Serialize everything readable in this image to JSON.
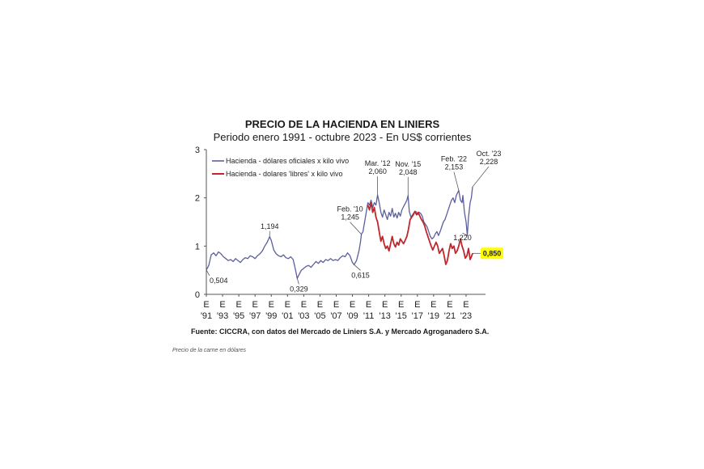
{
  "caption": "Precio de la carne en dólares",
  "chart_data": {
    "type": "line",
    "title": "PRECIO DE LA HACIENDA EN LINIERS",
    "subtitle": "Periodo enero 1991 - octubre 2023 - En US$ corrientes",
    "source": "Fuente: CICCRA, con datos del Mercado de Liniers S.A. y Mercado Agroganadero S.A.",
    "ylim": [
      0,
      3
    ],
    "yticks": [
      "0",
      "1",
      "2",
      "3"
    ],
    "xlim": [
      1991,
      2023.9
    ],
    "xticks": [
      {
        "x": 1991,
        "top": "E",
        "bottom": "'91"
      },
      {
        "x": 1993,
        "top": "E",
        "bottom": "'93"
      },
      {
        "x": 1995,
        "top": "E",
        "bottom": "'95"
      },
      {
        "x": 1997,
        "top": "E",
        "bottom": "'97"
      },
      {
        "x": 1999,
        "top": "E",
        "bottom": "'99"
      },
      {
        "x": 2001,
        "top": "E",
        "bottom": "'01"
      },
      {
        "x": 2003,
        "top": "E",
        "bottom": "'03"
      },
      {
        "x": 2005,
        "top": "E",
        "bottom": "'05"
      },
      {
        "x": 2007,
        "top": "E",
        "bottom": "'07"
      },
      {
        "x": 2009,
        "top": "E",
        "bottom": "'09"
      },
      {
        "x": 2011,
        "top": "E",
        "bottom": "'11"
      },
      {
        "x": 2013,
        "top": "E",
        "bottom": "'13"
      },
      {
        "x": 2015,
        "top": "E",
        "bottom": "'15"
      },
      {
        "x": 2017,
        "top": "E",
        "bottom": "'17"
      },
      {
        "x": 2019,
        "top": "E",
        "bottom": "'19"
      },
      {
        "x": 2021,
        "top": "E",
        "bottom": "'21"
      },
      {
        "x": 2023,
        "top": "E",
        "bottom": "'23"
      }
    ],
    "legend_position": "top-left",
    "series": [
      {
        "name": "Hacienda - dólares oficiales x kilo vivo",
        "color": "#5c5f9e",
        "points": [
          [
            1991.0,
            0.504
          ],
          [
            1991.3,
            0.6
          ],
          [
            1991.6,
            0.82
          ],
          [
            1991.9,
            0.86
          ],
          [
            1992.2,
            0.8
          ],
          [
            1992.5,
            0.88
          ],
          [
            1992.8,
            0.84
          ],
          [
            1993.1,
            0.78
          ],
          [
            1993.4,
            0.74
          ],
          [
            1993.7,
            0.7
          ],
          [
            1994.0,
            0.72
          ],
          [
            1994.3,
            0.68
          ],
          [
            1994.6,
            0.74
          ],
          [
            1994.9,
            0.7
          ],
          [
            1995.2,
            0.66
          ],
          [
            1995.5,
            0.72
          ],
          [
            1995.8,
            0.76
          ],
          [
            1996.1,
            0.74
          ],
          [
            1996.4,
            0.8
          ],
          [
            1996.7,
            0.78
          ],
          [
            1997.0,
            0.74
          ],
          [
            1997.3,
            0.8
          ],
          [
            1997.6,
            0.84
          ],
          [
            1997.9,
            0.9
          ],
          [
            1998.2,
            1.0
          ],
          [
            1998.5,
            1.08
          ],
          [
            1998.8,
            1.194
          ],
          [
            1999.0,
            1.12
          ],
          [
            1999.3,
            0.92
          ],
          [
            1999.6,
            0.84
          ],
          [
            1999.9,
            0.8
          ],
          [
            2000.2,
            0.78
          ],
          [
            2000.5,
            0.82
          ],
          [
            2000.8,
            0.76
          ],
          [
            2001.1,
            0.74
          ],
          [
            2001.4,
            0.78
          ],
          [
            2001.7,
            0.72
          ],
          [
            2002.0,
            0.5
          ],
          [
            2002.2,
            0.329
          ],
          [
            2002.4,
            0.4
          ],
          [
            2002.7,
            0.5
          ],
          [
            2003.0,
            0.54
          ],
          [
            2003.3,
            0.58
          ],
          [
            2003.6,
            0.6
          ],
          [
            2003.9,
            0.56
          ],
          [
            2004.2,
            0.62
          ],
          [
            2004.5,
            0.68
          ],
          [
            2004.8,
            0.64
          ],
          [
            2005.1,
            0.7
          ],
          [
            2005.4,
            0.66
          ],
          [
            2005.7,
            0.72
          ],
          [
            2006.0,
            0.7
          ],
          [
            2006.3,
            0.74
          ],
          [
            2006.6,
            0.7
          ],
          [
            2006.9,
            0.72
          ],
          [
            2007.2,
            0.7
          ],
          [
            2007.5,
            0.76
          ],
          [
            2007.8,
            0.8
          ],
          [
            2008.1,
            0.78
          ],
          [
            2008.4,
            0.86
          ],
          [
            2008.7,
            0.8
          ],
          [
            2009.0,
            0.66
          ],
          [
            2009.2,
            0.615
          ],
          [
            2009.5,
            0.7
          ],
          [
            2009.8,
            0.9
          ],
          [
            2010.0,
            1.1
          ],
          [
            2010.1,
            1.245
          ],
          [
            2010.3,
            1.3
          ],
          [
            2010.5,
            1.5
          ],
          [
            2010.7,
            1.7
          ],
          [
            2010.9,
            1.9
          ],
          [
            2011.1,
            1.85
          ],
          [
            2011.3,
            1.95
          ],
          [
            2011.5,
            1.8
          ],
          [
            2011.7,
            1.9
          ],
          [
            2011.9,
            1.85
          ],
          [
            2012.1,
            2.06
          ],
          [
            2012.3,
            1.9
          ],
          [
            2012.5,
            1.7
          ],
          [
            2012.7,
            1.6
          ],
          [
            2012.9,
            1.75
          ],
          [
            2013.1,
            1.65
          ],
          [
            2013.3,
            1.55
          ],
          [
            2013.5,
            1.7
          ],
          [
            2013.7,
            1.62
          ],
          [
            2013.9,
            1.78
          ],
          [
            2014.1,
            1.6
          ],
          [
            2014.3,
            1.68
          ],
          [
            2014.5,
            1.58
          ],
          [
            2014.7,
            1.7
          ],
          [
            2014.9,
            1.62
          ],
          [
            2015.1,
            1.75
          ],
          [
            2015.3,
            1.82
          ],
          [
            2015.5,
            1.88
          ],
          [
            2015.7,
            1.95
          ],
          [
            2015.85,
            2.048
          ],
          [
            2016.0,
            1.72
          ],
          [
            2016.2,
            1.6
          ],
          [
            2016.4,
            1.65
          ],
          [
            2016.6,
            1.7
          ],
          [
            2016.8,
            1.72
          ],
          [
            2017.0,
            1.65
          ],
          [
            2017.2,
            1.7
          ],
          [
            2017.4,
            1.68
          ],
          [
            2017.6,
            1.62
          ],
          [
            2017.8,
            1.5
          ],
          [
            2018.0,
            1.45
          ],
          [
            2018.2,
            1.4
          ],
          [
            2018.4,
            1.3
          ],
          [
            2018.6,
            1.2
          ],
          [
            2018.8,
            1.15
          ],
          [
            2019.0,
            1.18
          ],
          [
            2019.2,
            1.25
          ],
          [
            2019.4,
            1.3
          ],
          [
            2019.6,
            1.22
          ],
          [
            2019.8,
            1.3
          ],
          [
            2020.0,
            1.4
          ],
          [
            2020.2,
            1.5
          ],
          [
            2020.4,
            1.55
          ],
          [
            2020.6,
            1.65
          ],
          [
            2020.8,
            1.75
          ],
          [
            2021.0,
            1.85
          ],
          [
            2021.2,
            1.95
          ],
          [
            2021.4,
            2.0
          ],
          [
            2021.6,
            1.9
          ],
          [
            2021.8,
            2.05
          ],
          [
            2022.1,
            2.153
          ],
          [
            2022.3,
            1.95
          ],
          [
            2022.5,
            1.9
          ],
          [
            2022.6,
            2.05
          ],
          [
            2022.8,
            1.7
          ],
          [
            2023.0,
            1.5
          ],
          [
            2023.15,
            1.22
          ],
          [
            2023.3,
            1.6
          ],
          [
            2023.5,
            1.9
          ],
          [
            2023.65,
            2.0
          ],
          [
            2023.8,
            2.228
          ]
        ]
      },
      {
        "name": "Hacienda - dolares 'libres' x kilo vivo",
        "color": "#c0262c",
        "points": [
          [
            2010.9,
            1.85
          ],
          [
            2011.1,
            1.75
          ],
          [
            2011.3,
            1.9
          ],
          [
            2011.5,
            1.7
          ],
          [
            2011.7,
            1.8
          ],
          [
            2011.9,
            1.6
          ],
          [
            2012.1,
            1.5
          ],
          [
            2012.3,
            1.3
          ],
          [
            2012.5,
            1.1
          ],
          [
            2012.7,
            1.2
          ],
          [
            2012.9,
            1.05
          ],
          [
            2013.1,
            0.95
          ],
          [
            2013.3,
            1.0
          ],
          [
            2013.5,
            0.9
          ],
          [
            2013.7,
            1.05
          ],
          [
            2013.9,
            1.2
          ],
          [
            2014.1,
            1.05
          ],
          [
            2014.3,
            0.98
          ],
          [
            2014.5,
            1.08
          ],
          [
            2014.7,
            1.02
          ],
          [
            2014.9,
            1.15
          ],
          [
            2015.1,
            1.1
          ],
          [
            2015.3,
            1.05
          ],
          [
            2015.5,
            1.12
          ],
          [
            2015.7,
            1.2
          ],
          [
            2015.9,
            1.35
          ],
          [
            2016.1,
            1.55
          ],
          [
            2016.3,
            1.6
          ],
          [
            2016.5,
            1.65
          ],
          [
            2016.7,
            1.72
          ],
          [
            2016.9,
            1.65
          ],
          [
            2017.1,
            1.7
          ],
          [
            2017.3,
            1.62
          ],
          [
            2017.5,
            1.55
          ],
          [
            2017.7,
            1.5
          ],
          [
            2017.9,
            1.42
          ],
          [
            2018.1,
            1.3
          ],
          [
            2018.3,
            1.2
          ],
          [
            2018.5,
            1.1
          ],
          [
            2018.7,
            1.0
          ],
          [
            2018.9,
            0.92
          ],
          [
            2019.1,
            1.0
          ],
          [
            2019.3,
            1.08
          ],
          [
            2019.5,
            1.0
          ],
          [
            2019.7,
            0.85
          ],
          [
            2019.9,
            0.9
          ],
          [
            2020.1,
            0.95
          ],
          [
            2020.3,
            0.8
          ],
          [
            2020.5,
            0.62
          ],
          [
            2020.7,
            0.7
          ],
          [
            2020.9,
            0.9
          ],
          [
            2021.1,
            1.05
          ],
          [
            2021.3,
            0.95
          ],
          [
            2021.5,
            1.0
          ],
          [
            2021.7,
            0.85
          ],
          [
            2021.9,
            0.9
          ],
          [
            2022.1,
            1.0
          ],
          [
            2022.3,
            1.15
          ],
          [
            2022.5,
            1.0
          ],
          [
            2022.7,
            0.9
          ],
          [
            2022.9,
            0.75
          ],
          [
            2023.1,
            0.8
          ],
          [
            2023.3,
            0.95
          ],
          [
            2023.5,
            0.72
          ],
          [
            2023.7,
            0.8
          ],
          [
            2023.8,
            0.85
          ]
        ]
      }
    ],
    "annotations": [
      {
        "x": 1991.0,
        "y": 0.504,
        "lines": [
          "0,504"
        ],
        "dx": 4,
        "dy": 16,
        "anchor": "start"
      },
      {
        "x": 1998.8,
        "y": 1.194,
        "lines": [
          "1,194"
        ],
        "dx": 0,
        "dy": -10,
        "anchor": "middle"
      },
      {
        "x": 2002.2,
        "y": 0.329,
        "lines": [
          "0,329"
        ],
        "dx": 2,
        "dy": 16,
        "anchor": "middle"
      },
      {
        "x": 2009.2,
        "y": 0.615,
        "lines": [
          "0,615"
        ],
        "dx": 8,
        "dy": 16,
        "anchor": "middle"
      },
      {
        "x": 2010.1,
        "y": 1.245,
        "lines": [
          "Feb. '10",
          "1,245"
        ],
        "dx": -14,
        "dy": -28,
        "anchor": "middle"
      },
      {
        "x": 2012.1,
        "y": 2.06,
        "lines": [
          "Mar. '12",
          "2,060"
        ],
        "dx": 0,
        "dy": -36,
        "anchor": "middle"
      },
      {
        "x": 2015.85,
        "y": 2.048,
        "lines": [
          "Nov. '15",
          "2,048"
        ],
        "dx": 0,
        "dy": -36,
        "anchor": "middle"
      },
      {
        "x": 2022.1,
        "y": 2.153,
        "lines": [
          "Feb. '22",
          "2,153"
        ],
        "dx": -6,
        "dy": -36,
        "anchor": "middle"
      },
      {
        "x": 2023.15,
        "y": 1.22,
        "lines": [
          "1,220"
        ],
        "dx": -6,
        "dy": 6,
        "anchor": "middle"
      },
      {
        "x": 2023.8,
        "y": 2.228,
        "lines": [
          "Oct. '23",
          "2,228"
        ],
        "dx": 20,
        "dy": -38,
        "anchor": "middle"
      }
    ],
    "highlight": {
      "x": 2023.8,
      "y": 0.85,
      "label": "0,850",
      "color": "#ffff00"
    }
  }
}
